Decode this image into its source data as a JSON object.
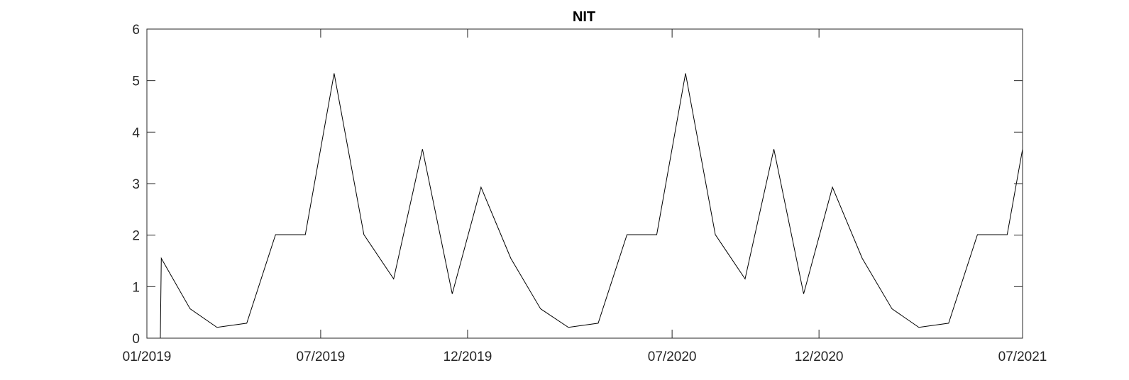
{
  "chart_data": {
    "type": "line",
    "title": "NIT",
    "xlabel": "",
    "ylabel": "",
    "grid": false,
    "legend": "none",
    "xlim": [
      "2019-01-01",
      "2021-07-01"
    ],
    "ylim": [
      0,
      6
    ],
    "x_ticks": [
      {
        "date": "2019-01-01",
        "label": "01/2019"
      },
      {
        "date": "2019-07-01",
        "label": "07/2019"
      },
      {
        "date": "2019-12-01",
        "label": "12/2019"
      },
      {
        "date": "2020-07-01",
        "label": "07/2020"
      },
      {
        "date": "2020-12-01",
        "label": "12/2020"
      },
      {
        "date": "2021-07-01",
        "label": "07/2021"
      }
    ],
    "y_ticks": [
      0,
      1,
      2,
      3,
      4,
      5,
      6
    ],
    "series": [
      {
        "color": "#000000",
        "x": [
          "2019-01-01",
          "2019-01-15",
          "2019-01-16",
          "2019-02-15",
          "2019-03-15",
          "2019-04-15",
          "2019-05-15",
          "2019-06-15",
          "2019-07-15",
          "2019-08-15",
          "2019-09-15",
          "2019-10-15",
          "2019-11-15",
          "2019-12-15",
          "2020-01-15",
          "2020-02-15",
          "2020-03-15",
          "2020-04-15",
          "2020-05-15",
          "2020-06-15",
          "2020-07-15",
          "2020-08-15",
          "2020-09-15",
          "2020-10-15",
          "2020-11-15",
          "2020-12-15",
          "2021-01-15",
          "2021-02-15",
          "2021-03-15",
          "2021-04-15",
          "2021-05-15",
          "2021-06-15",
          "2021-07-01"
        ],
        "y": [
          0,
          0,
          1.55,
          0.57,
          0.21,
          0.29,
          2.01,
          2.01,
          5.14,
          2.01,
          1.15,
          3.67,
          0.86,
          2.93,
          1.55,
          0.57,
          0.21,
          0.29,
          2.01,
          2.01,
          5.14,
          2.01,
          1.15,
          3.67,
          0.86,
          2.93,
          1.55,
          0.57,
          0.21,
          0.29,
          2.01,
          2.01,
          3.67
        ]
      }
    ]
  }
}
